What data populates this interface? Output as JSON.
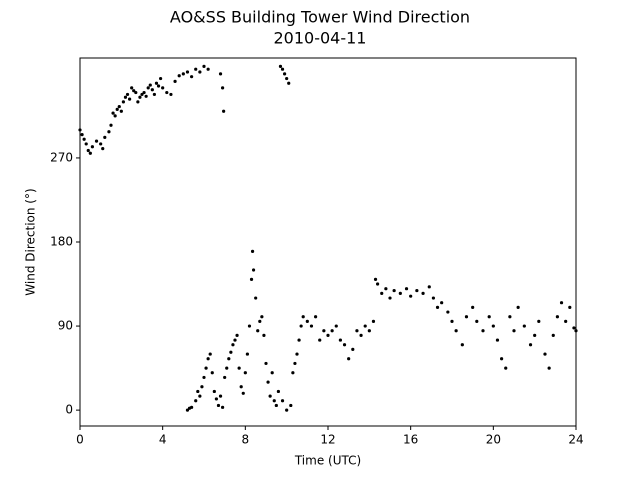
{
  "chart_data": {
    "type": "scatter",
    "title": "AO&SS Building Tower Wind Direction",
    "subtitle": "2010-04-11",
    "x_label": "Time (UTC)",
    "y_label": "Wind Direction (°)",
    "color": "#000000",
    "xlim": [
      0,
      24
    ],
    "xticks": [
      0,
      4,
      8,
      12,
      16,
      20,
      24
    ],
    "ylim": [
      -17,
      377
    ],
    "yticks": [
      0,
      90,
      180,
      270
    ],
    "x": [
      0,
      0.1,
      0.2,
      0.3,
      0.4,
      0.5,
      0.6,
      0.8,
      1.0,
      1.1,
      1.2,
      1.4,
      1.5,
      1.6,
      1.7,
      1.8,
      1.9,
      2.0,
      2.1,
      2.2,
      2.3,
      2.4,
      2.5,
      2.6,
      2.7,
      2.8,
      2.9,
      3.0,
      3.1,
      3.2,
      3.3,
      3.4,
      3.5,
      3.6,
      3.7,
      3.8,
      3.9,
      4.0,
      4.2,
      4.4,
      4.6,
      4.8,
      5.0,
      5.2,
      5.4,
      5.6,
      5.8,
      6.0,
      6.2,
      6.8,
      6.9,
      6.95,
      9.7,
      9.8,
      9.9,
      10.0,
      10.1,
      5.2,
      5.3,
      5.4,
      5.6,
      5.7,
      5.8,
      5.9,
      6.0,
      6.1,
      6.2,
      6.3,
      6.4,
      6.5,
      6.6,
      6.7,
      6.8,
      6.9,
      7.0,
      7.1,
      7.2,
      7.3,
      7.4,
      7.5,
      7.6,
      7.7,
      7.8,
      7.9,
      8.0,
      8.1,
      8.2,
      8.3,
      8.35,
      8.4,
      8.5,
      8.6,
      8.7,
      8.8,
      8.9,
      9.0,
      9.1,
      9.2,
      9.3,
      9.4,
      9.5,
      9.6,
      9.8,
      10.0,
      10.2,
      10.3,
      10.4,
      10.5,
      10.6,
      10.7,
      10.8,
      11.0,
      11.2,
      11.4,
      11.6,
      11.8,
      12.0,
      12.2,
      12.4,
      12.6,
      12.8,
      13.0,
      13.2,
      13.4,
      13.6,
      13.8,
      14.0,
      14.2,
      14.3,
      14.4,
      14.6,
      14.8,
      15.0,
      15.2,
      15.5,
      15.8,
      16.0,
      16.3,
      16.6,
      16.9,
      17.1,
      17.3,
      17.5,
      17.8,
      18.0,
      18.2,
      18.5,
      18.7,
      19.0,
      19.2,
      19.5,
      19.8,
      20.0,
      20.2,
      20.4,
      20.6,
      20.8,
      21.0,
      21.2,
      21.5,
      21.8,
      22.0,
      22.2,
      22.5,
      22.7,
      22.9,
      23.1,
      23.3,
      23.5,
      23.7,
      23.9,
      24.0
    ],
    "values": [
      300,
      295,
      290,
      285,
      278,
      275,
      282,
      288,
      285,
      280,
      292,
      298,
      305,
      318,
      315,
      322,
      325,
      320,
      330,
      335,
      338,
      333,
      345,
      342,
      340,
      330,
      335,
      338,
      340,
      336,
      345,
      348,
      343,
      338,
      350,
      347,
      355,
      345,
      340,
      338,
      352,
      358,
      360,
      362,
      357,
      365,
      362,
      368,
      365,
      360,
      345,
      320,
      368,
      365,
      360,
      355,
      350,
      0,
      2,
      3,
      10,
      20,
      15,
      25,
      35,
      45,
      55,
      60,
      40,
      20,
      12,
      5,
      15,
      3,
      35,
      45,
      55,
      62,
      70,
      75,
      80,
      45,
      25,
      18,
      40,
      60,
      90,
      140,
      170,
      150,
      120,
      85,
      95,
      100,
      80,
      50,
      30,
      15,
      40,
      10,
      5,
      20,
      10,
      0,
      5,
      40,
      50,
      60,
      75,
      90,
      100,
      95,
      90,
      100,
      75,
      85,
      80,
      85,
      90,
      75,
      70,
      55,
      65,
      85,
      80,
      90,
      85,
      95,
      140,
      135,
      125,
      130,
      120,
      128,
      125,
      130,
      122,
      128,
      125,
      132,
      120,
      110,
      115,
      105,
      95,
      85,
      70,
      100,
      110,
      95,
      85,
      100,
      90,
      75,
      55,
      45,
      100,
      85,
      110,
      90,
      70,
      80,
      95,
      60,
      45,
      80,
      100,
      115,
      95,
      110,
      88,
      85
    ]
  }
}
